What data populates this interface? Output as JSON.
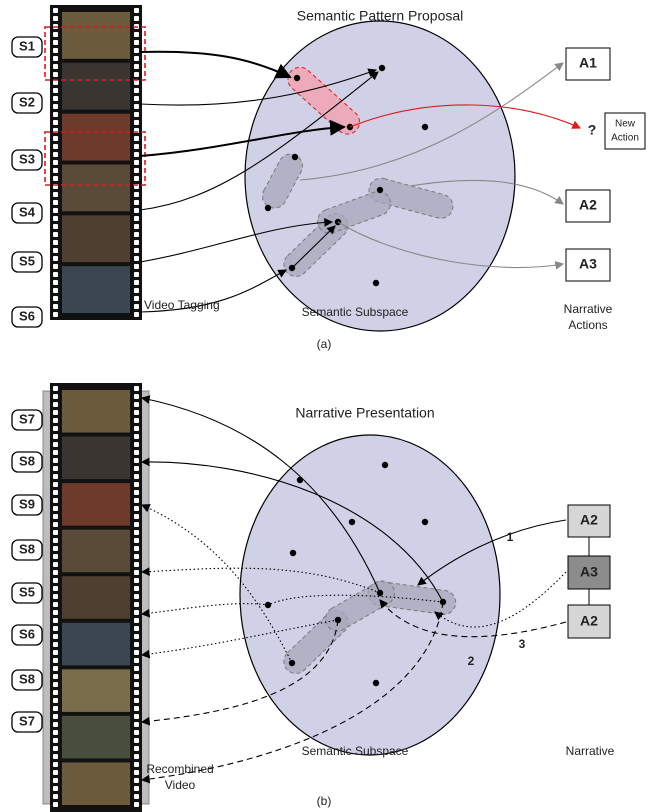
{
  "panel_a": {
    "title": "Semantic Pattern Proposal",
    "shots": [
      "S1",
      "S2",
      "S3",
      "S4",
      "S5",
      "S6"
    ],
    "video_tagging": "Video Tagging",
    "subspace_label": "Semantic Subspace",
    "narrative_actions": [
      "Narrative",
      "Actions"
    ],
    "actions": [
      "A1",
      "A2",
      "A3"
    ],
    "unknown": "?",
    "new_action": [
      "New",
      "Action"
    ],
    "caption": "(a)"
  },
  "panel_b": {
    "title": "Narrative Presentation",
    "shots": [
      "S7",
      "S8",
      "S9",
      "S8",
      "S5",
      "S6",
      "S8",
      "S7"
    ],
    "subspace_label": "Semantic Subspace",
    "narrative_label": "Narrative",
    "actions": [
      "A2",
      "A3",
      "A2"
    ],
    "steps": [
      "1",
      "2",
      "3"
    ],
    "recombined_video": [
      "Recombined",
      "Video"
    ],
    "caption": "(b)"
  }
}
